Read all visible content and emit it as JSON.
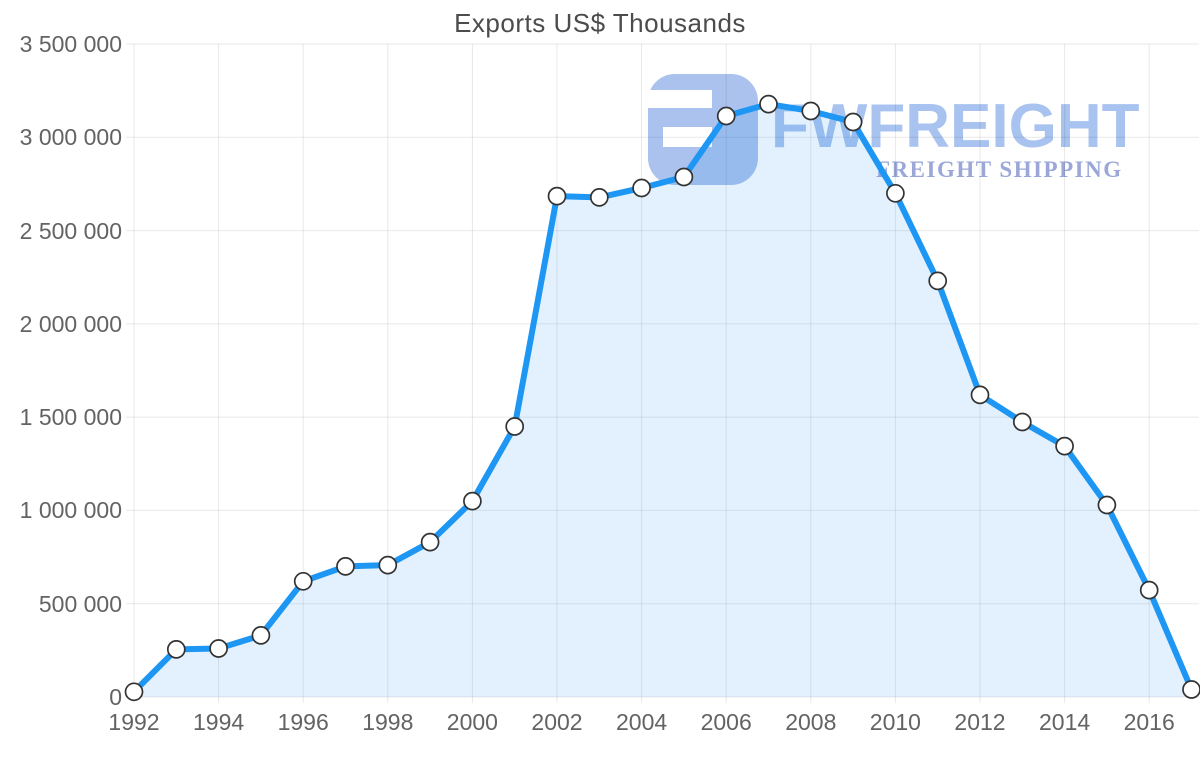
{
  "page": {
    "background": "#ffffff"
  },
  "chart_data": {
    "type": "area",
    "title": "Exports US$ Thousands",
    "xlabel": "",
    "ylabel": "",
    "x": [
      1992,
      1993,
      1994,
      1995,
      1996,
      1997,
      1998,
      1999,
      2000,
      2001,
      2002,
      2003,
      2004,
      2005,
      2006,
      2007,
      2008,
      2009,
      2010,
      2011,
      2012,
      2013,
      2014,
      2015,
      2016,
      2017
    ],
    "values": [
      28000,
      255000,
      260000,
      330000,
      620000,
      700000,
      707000,
      830000,
      1050000,
      1450000,
      2685000,
      2678000,
      2728000,
      2787000,
      3114000,
      3178000,
      3141000,
      3082000,
      2700000,
      2230000,
      1619000,
      1474000,
      1345000,
      1029000,
      573000,
      40000
    ],
    "xlim": [
      1992,
      2017
    ],
    "ylim": [
      0,
      3500000
    ],
    "y_tick_interval": 500000,
    "y_tick_labels": [
      "0",
      "500 000",
      "1 000 000",
      "1 500 000",
      "2 000 000",
      "2 500 000",
      "3 000 000",
      "3 500 000"
    ],
    "x_tick_years": [
      1992,
      1994,
      1996,
      1998,
      2000,
      2002,
      2004,
      2006,
      2008,
      2010,
      2012,
      2014,
      2016
    ],
    "x_tick_labels": [
      "1992",
      "1994",
      "1996",
      "1998",
      "2000",
      "2002",
      "2004",
      "2006",
      "2008",
      "2010",
      "2012",
      "2014",
      "2016"
    ],
    "grid": true,
    "legend": false,
    "line_color": "#1e96f3",
    "fill_color": "rgba(30,150,243,0.13)",
    "grid_color": "rgba(0,0,0,0.09)",
    "marker_fill": "#ffffff",
    "marker_stroke": "#333333",
    "title_color": "#4c4c4c",
    "axis_label_color": "#636363"
  },
  "watermark": {
    "brand": "FWFREIGHT",
    "subtitle": "FREIGHT SHIPPING",
    "logo_color": "#abc2ee",
    "brand_color": "#a8c3f0",
    "subtitle_color": "#9aa7d8"
  }
}
